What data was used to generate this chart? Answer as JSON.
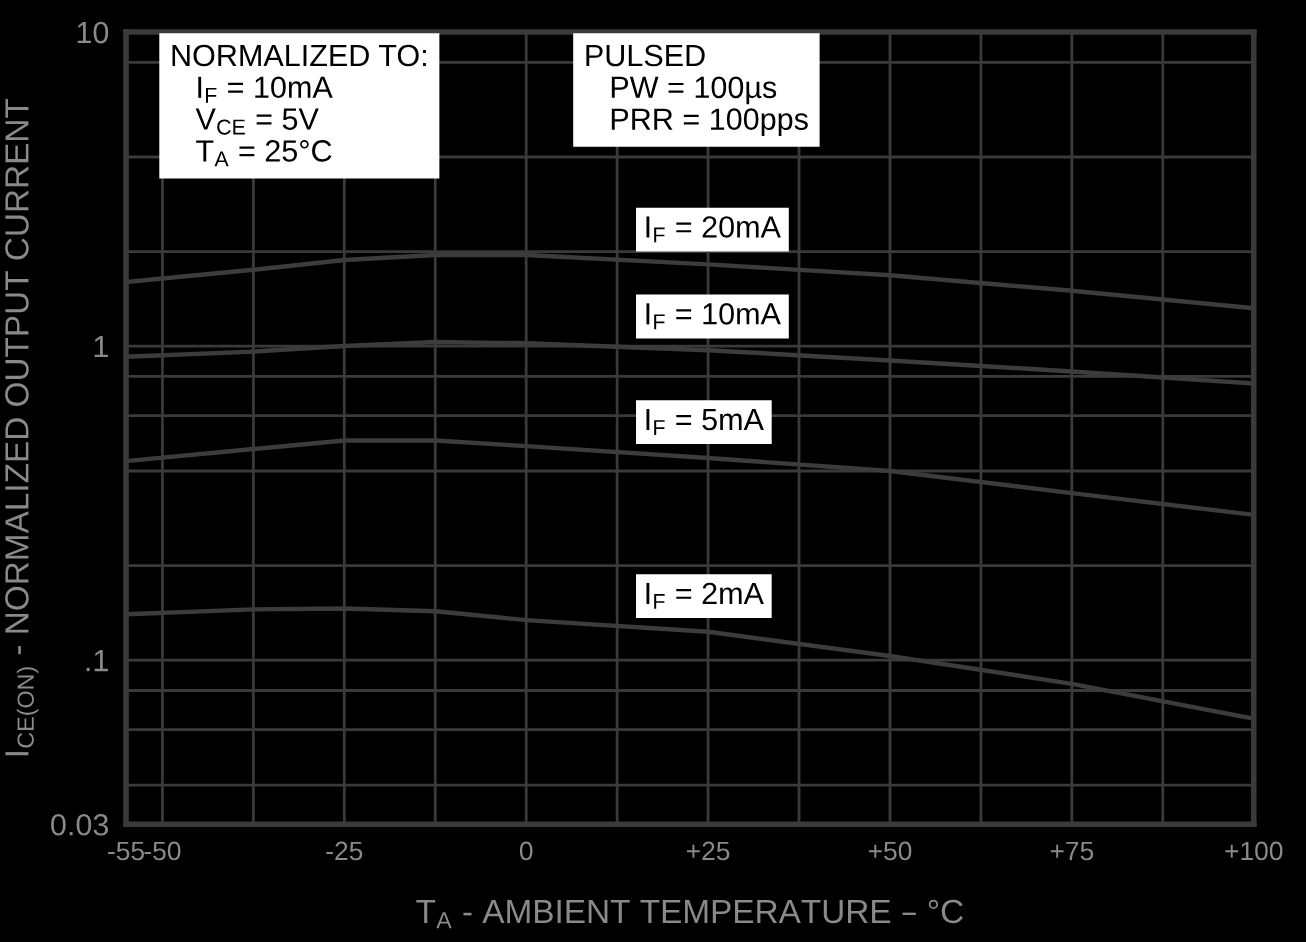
{
  "chart_data": {
    "type": "line",
    "xlabel": "T$_{A}$ - AMBIENT TEMPERATURE – °C",
    "ylabel": "I$_{CE(ON)}$ - NORMALIZED OUTPUT CURRENT",
    "x": [
      -55,
      -37.5,
      -25,
      -12.5,
      0,
      25,
      50,
      75,
      100
    ],
    "series": [
      {
        "name": "I$_{F}$ = 20mA",
        "color": "#3c3c3c",
        "values": [
          1.6,
          1.75,
          1.88,
          1.95,
          1.95,
          1.82,
          1.68,
          1.5,
          1.32
        ]
      },
      {
        "name": "I$_{F}$ = 10mA",
        "color": "#3c3c3c",
        "values": [
          0.925,
          0.96,
          1.0,
          1.03,
          1.02,
          0.97,
          0.9,
          0.83,
          0.76
        ]
      },
      {
        "name": "I$_{F}$ = 5mA",
        "color": "#3c3c3c",
        "values": [
          0.43,
          0.47,
          0.5,
          0.5,
          0.48,
          0.44,
          0.4,
          0.34,
          0.29
        ]
      },
      {
        "name": "I$_{F}$ = 2mA",
        "color": "#3c3c3c",
        "values": [
          0.14,
          0.145,
          0.146,
          0.143,
          0.134,
          0.123,
          0.103,
          0.084,
          0.065
        ]
      }
    ],
    "xlim": [
      -55,
      100
    ],
    "xticks": [
      -55,
      -50,
      {
        "value": -37.5,
        "label": null
      },
      -25,
      {
        "value": -12.5,
        "label": null
      },
      0,
      {
        "value": 12.5,
        "label": null
      },
      {
        "value": 25,
        "label": "+25"
      },
      {
        "value": 37.5,
        "label": null
      },
      {
        "value": 50,
        "label": "+50"
      },
      {
        "value": 62.5,
        "label": null
      },
      {
        "value": 75,
        "label": "+75"
      },
      {
        "value": 87.5,
        "label": null
      },
      {
        "value": 100,
        "label": "+100"
      }
    ],
    "ylim": [
      0.03,
      10
    ],
    "yticks": [
      {
        "value": 0.03,
        "label": "0.03"
      },
      {
        "value": 0.04,
        "label": null
      },
      {
        "value": 0.06,
        "label": null
      },
      {
        "value": 0.08,
        "label": null
      },
      {
        "value": 0.1,
        "label": ".1"
      },
      {
        "value": 0.2,
        "label": null
      },
      {
        "value": 0.4,
        "label": null
      },
      {
        "value": 0.6,
        "label": null
      },
      {
        "value": 0.8,
        "label": null
      },
      1,
      {
        "value": 2,
        "label": null
      },
      {
        "value": 4,
        "label": null
      },
      {
        "value": 8,
        "label": null
      },
      10
    ],
    "log": true,
    "grid": true,
    "annotations": [
      "NORMALIZED TO:\n   I$_{F}$ = 10mA\n   V$_{CE}$ = 5V\n   T$_{A}$ = 25°C",
      "PULSED\n   PW = 100µs\n   PRR = 100pps"
    ]
  }
}
